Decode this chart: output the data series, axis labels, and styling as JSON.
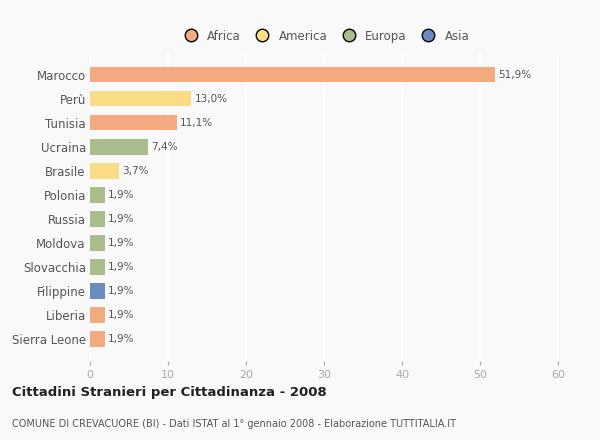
{
  "countries": [
    "Marocco",
    "Perù",
    "Tunisia",
    "Ucraina",
    "Brasile",
    "Polonia",
    "Russia",
    "Moldova",
    "Slovacchia",
    "Filippine",
    "Liberia",
    "Sierra Leone"
  ],
  "values": [
    51.9,
    13.0,
    11.1,
    7.4,
    3.7,
    1.9,
    1.9,
    1.9,
    1.9,
    1.9,
    1.9,
    1.9
  ],
  "labels": [
    "51,9%",
    "13,0%",
    "11,1%",
    "7,4%",
    "3,7%",
    "1,9%",
    "1,9%",
    "1,9%",
    "1,9%",
    "1,9%",
    "1,9%",
    "1,9%"
  ],
  "colors": [
    "#f2aa7e",
    "#f9dc85",
    "#f2aa7e",
    "#a8bc8c",
    "#f9dc85",
    "#a8bc8c",
    "#a8bc8c",
    "#a8bc8c",
    "#a8bc8c",
    "#6b8cbf",
    "#f2aa7e",
    "#f2aa7e"
  ],
  "legend": [
    {
      "label": "Africa",
      "color": "#f2aa7e"
    },
    {
      "label": "America",
      "color": "#f9dc85"
    },
    {
      "label": "Europa",
      "color": "#a8bc8c"
    },
    {
      "label": "Asia",
      "color": "#6b8cbf"
    }
  ],
  "xlim": [
    0,
    60
  ],
  "xticks": [
    0,
    10,
    20,
    30,
    40,
    50,
    60
  ],
  "title": "Cittadini Stranieri per Cittadinanza - 2008",
  "subtitle": "COMUNE DI CREVACUORE (BI) - Dati ISTAT al 1° gennaio 2008 - Elaborazione TUTTITALIA.IT",
  "background_color": "#f9f9f9",
  "grid_color": "#ffffff",
  "bar_height": 0.65,
  "text_color": "#555555",
  "tick_color": "#aaaaaa"
}
